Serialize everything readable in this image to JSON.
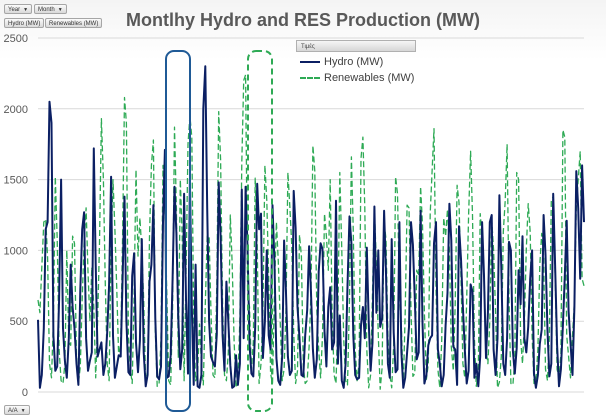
{
  "filters": {
    "year": "Year",
    "month": "Month",
    "hydro_field": "Hydro (MW)",
    "res_field": "Renewables (MW)",
    "bottom": "A/A"
  },
  "legend_title": "Τιμές",
  "colors": {
    "hydro": "#0b1f63",
    "renewables": "#2eaa55",
    "highlight_hydro": "#1f5a96",
    "highlight_res": "#2eaa55"
  },
  "chart_data": {
    "type": "line",
    "title": "Montlhy Hydro and RES Production (MW)",
    "ylim": [
      0,
      2500
    ],
    "yticks": [
      0,
      500,
      1000,
      1500,
      2000,
      2500
    ],
    "grid": true,
    "legend_placement": "top-right",
    "series": [
      {
        "name": "Hydro (MW)",
        "style": "solid",
        "values": [
          510,
          30,
          120,
          450,
          1150,
          1200,
          2050,
          1900,
          400,
          150,
          180,
          650,
          1500,
          450,
          220,
          100,
          380,
          900,
          600,
          450,
          200,
          50,
          720,
          1150,
          1270,
          380,
          150,
          220,
          280,
          1720,
          900,
          250,
          300,
          350,
          120,
          200,
          420,
          760,
          1520,
          400,
          100,
          180,
          260,
          250,
          800,
          1380,
          500,
          140,
          120,
          820,
          980,
          350,
          140,
          360,
          1080,
          280,
          40,
          120,
          780,
          900,
          1320,
          520,
          110,
          90,
          180,
          1200,
          1710,
          100,
          110,
          260,
          800,
          1450,
          1120,
          520,
          160,
          300,
          1400,
          660,
          130,
          1500,
          600,
          50,
          900,
          40,
          30,
          120,
          2000,
          2300,
          1300,
          500,
          250,
          210,
          180,
          410,
          1480,
          1100,
          400,
          150,
          780,
          500,
          190,
          30,
          40,
          260,
          50,
          200,
          1430,
          380,
          1450,
          1000,
          340,
          130,
          110,
          460,
          1470,
          1150,
          1260,
          240,
          500,
          1000,
          400,
          300,
          1320,
          900,
          240,
          80,
          50,
          250,
          1070,
          700,
          250,
          120,
          150,
          1420,
          1160,
          600,
          380,
          120,
          110,
          400,
          580,
          1030,
          700,
          300,
          100,
          230,
          850,
          1050,
          1010,
          430,
          180,
          600,
          740,
          300,
          350,
          1350,
          200,
          540,
          80,
          30,
          200,
          750,
          1240,
          1050,
          400,
          120,
          90,
          100,
          470,
          600,
          380,
          1020,
          500,
          150,
          350,
          1310,
          560,
          1000,
          460,
          520,
          1280,
          840,
          200,
          100,
          1080,
          420,
          140,
          160,
          1200,
          280,
          30,
          100,
          280,
          460,
          1200,
          1040,
          660,
          230,
          280,
          1280,
          490,
          60,
          120,
          330,
          380,
          400,
          1050,
          1200,
          300,
          200,
          40,
          120,
          470,
          700,
          1330,
          1070,
          320,
          300,
          50,
          1170,
          940,
          600,
          300,
          60,
          150,
          760,
          710,
          100,
          200,
          40,
          250,
          1200,
          820,
          240,
          560,
          1200,
          1250,
          300,
          120,
          380,
          1390,
          880,
          200,
          120,
          380,
          1060,
          1000,
          290,
          130,
          310,
          860,
          620,
          1100,
          380,
          280,
          460,
          800,
          1000,
          130,
          30,
          120,
          340,
          440,
          1250,
          970,
          430,
          110,
          200,
          1400,
          870,
          330,
          40,
          160,
          470,
          820,
          1210,
          570,
          350,
          120,
          600,
          1560,
          1300,
          800,
          1600,
          1200
        ]
      },
      {
        "name": "Renewables (MW)",
        "style": "dashed",
        "values": [
          650,
          560,
          880,
          1200,
          1220,
          950,
          200,
          100,
          500,
          1520,
          1080,
          300,
          80,
          60,
          200,
          1000,
          350,
          330,
          1100,
          1050,
          250,
          60,
          180,
          660,
          1050,
          1300,
          850,
          500,
          880,
          600,
          100,
          500,
          1050,
          1930,
          1500,
          760,
          200,
          80,
          1020,
          1500,
          1150,
          720,
          240,
          350,
          1100,
          2080,
          1900,
          400,
          160,
          60,
          680,
          1570,
          960,
          1230,
          1000,
          650,
          60,
          150,
          1100,
          1600,
          1780,
          430,
          40,
          60,
          380,
          1600,
          1270,
          700,
          80,
          50,
          600,
          1870,
          1300,
          240,
          1500,
          1100,
          80,
          820,
          1750,
          1950,
          1800,
          500,
          80,
          130,
          480,
          200,
          50,
          620,
          1100,
          1100,
          560,
          120,
          100,
          760,
          1980,
          1640,
          600,
          120,
          80,
          280,
          1250,
          900,
          360,
          30,
          80,
          520,
          1620,
          2200,
          2240,
          700,
          600,
          160,
          350,
          1510,
          1050,
          60,
          200,
          560,
          1600,
          1350,
          800,
          130,
          60,
          720,
          1200,
          920,
          500,
          80,
          160,
          590,
          1550,
          1300,
          1030,
          420,
          60,
          150,
          1110,
          960,
          180,
          60,
          80,
          320,
          700,
          1740,
          1560,
          580,
          300,
          100,
          400,
          1260,
          1100,
          860,
          1500,
          560,
          120,
          60,
          550,
          1550,
          1000,
          380,
          80,
          50,
          650,
          1660,
          1130,
          300,
          80,
          200,
          1650,
          1800,
          1300,
          300,
          30,
          120,
          700,
          1300,
          900,
          400,
          20,
          170,
          1200,
          1080,
          400,
          120,
          30,
          330,
          1520,
          1400,
          700,
          450,
          40,
          560,
          1320,
          1300,
          580,
          110,
          130,
          860,
          820,
          1450,
          1180,
          560,
          90,
          200,
          1260,
          1560,
          1860,
          740,
          160,
          30,
          360,
          1230,
          1100,
          1290,
          1000,
          320,
          150,
          620,
          1460,
          1340,
          800,
          200,
          100,
          660,
          1250,
          1700,
          1250,
          380,
          40,
          150,
          1260,
          1100,
          850,
          300,
          200,
          500,
          1220,
          1000,
          560,
          30,
          70,
          250,
          1130,
          1350,
          1750,
          660,
          60,
          50,
          230,
          1550,
          1500,
          380,
          200,
          500,
          1010,
          1330,
          1130,
          400,
          60,
          80,
          300,
          900,
          1120,
          960,
          160,
          80,
          400,
          1350,
          1380,
          800,
          160,
          100,
          270,
          1850,
          1800,
          400,
          250,
          100,
          400,
          640,
          1300,
          1500,
          1700,
          800,
          750
        ]
      }
    ]
  }
}
